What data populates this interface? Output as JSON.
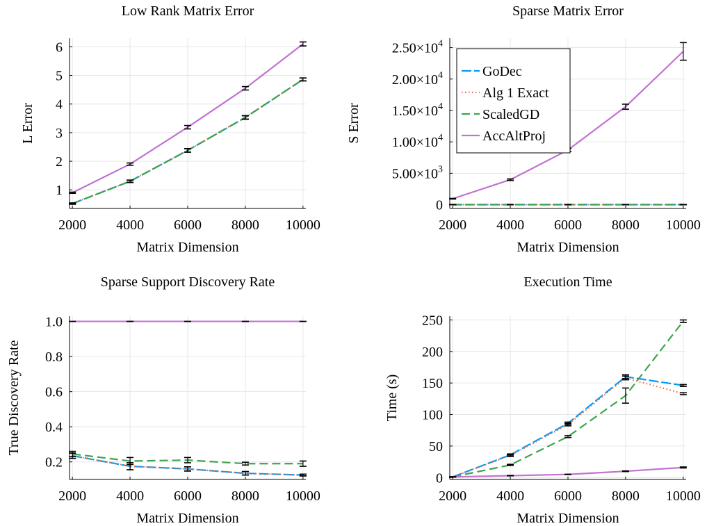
{
  "legend": {
    "entries": [
      {
        "name": "GoDec",
        "color": "#009AFA",
        "dash": "long-dash"
      },
      {
        "name": "Alg 1 Exact",
        "color": "#E26F46",
        "dash": "dot"
      },
      {
        "name": "ScaledGD",
        "color": "#3DA44D",
        "dash": "dash"
      },
      {
        "name": "AccAltProj",
        "color": "#C271D2",
        "dash": "solid"
      }
    ]
  },
  "chart_data": [
    {
      "type": "line",
      "title": "Low Rank Matrix Error",
      "xlabel": "Matrix Dimension",
      "ylabel": "L Error",
      "x": [
        2000,
        4000,
        6000,
        8000,
        10000
      ],
      "xticks": [
        "2000",
        "4000",
        "6000",
        "8000",
        "10000"
      ],
      "yticks": [
        {
          "v": 1,
          "label": "1"
        },
        {
          "v": 2,
          "label": "2"
        },
        {
          "v": 3,
          "label": "3"
        },
        {
          "v": 4,
          "label": "4"
        },
        {
          "v": 5,
          "label": "5"
        },
        {
          "v": 6,
          "label": "6"
        }
      ],
      "xlim": [
        1900,
        10100
      ],
      "ylim": [
        0.35,
        6.3
      ],
      "grid": true,
      "series": [
        {
          "name": "GoDec",
          "values": [
            0.52,
            1.3,
            2.38,
            3.53,
            4.86
          ],
          "err": [
            0.02,
            0.04,
            0.06,
            0.06,
            0.05
          ]
        },
        {
          "name": "Alg 1 Exact",
          "values": [
            0.52,
            1.3,
            2.38,
            3.53,
            4.86
          ],
          "err": [
            0.02,
            0.04,
            0.06,
            0.06,
            0.05
          ]
        },
        {
          "name": "ScaledGD",
          "values": [
            0.52,
            1.3,
            2.38,
            3.53,
            4.86
          ],
          "err": [
            0.02,
            0.04,
            0.06,
            0.06,
            0.05
          ]
        },
        {
          "name": "AccAltProj",
          "values": [
            0.9,
            1.9,
            3.19,
            4.55,
            6.1
          ],
          "err": [
            0.02,
            0.04,
            0.06,
            0.06,
            0.07
          ]
        }
      ]
    },
    {
      "type": "line",
      "title": "Sparse Matrix Error",
      "xlabel": "Matrix Dimension",
      "ylabel": "S Error",
      "x": [
        2000,
        4000,
        6000,
        8000,
        10000
      ],
      "xticks": [
        "2000",
        "4000",
        "6000",
        "8000",
        "10000"
      ],
      "yticks": [
        {
          "v": 0,
          "label": "0"
        },
        {
          "v": 5000,
          "label": "5.00×10",
          "exp": "3"
        },
        {
          "v": 10000,
          "label": "1.00×10",
          "exp": "4"
        },
        {
          "v": 15000,
          "label": "1.50×10",
          "exp": "4"
        },
        {
          "v": 20000,
          "label": "2.00×10",
          "exp": "4"
        },
        {
          "v": 25000,
          "label": "2.50×10",
          "exp": "4"
        }
      ],
      "xlim": [
        1900,
        10100
      ],
      "ylim": [
        -600,
        26500
      ],
      "grid": true,
      "legend_position": "top-left",
      "series": [
        {
          "name": "GoDec",
          "values": [
            5,
            5,
            5,
            5,
            5
          ],
          "err": [
            0,
            0,
            0,
            0,
            0
          ]
        },
        {
          "name": "Alg 1 Exact",
          "values": [
            5,
            5,
            5,
            5,
            5
          ],
          "err": [
            0,
            0,
            0,
            0,
            0
          ]
        },
        {
          "name": "ScaledGD",
          "values": [
            5,
            5,
            5,
            5,
            5
          ],
          "err": [
            0,
            0,
            0,
            0,
            0
          ]
        },
        {
          "name": "AccAltProj",
          "values": [
            950,
            3980,
            8700,
            15600,
            24400
          ],
          "err": [
            50,
            120,
            250,
            400,
            1400
          ]
        }
      ]
    },
    {
      "type": "line",
      "title": "Sparse Support Discovery Rate",
      "xlabel": "Matrix Dimension",
      "ylabel": "True Discovery Rate",
      "x": [
        2000,
        4000,
        6000,
        8000,
        10000
      ],
      "xticks": [
        "2000",
        "4000",
        "6000",
        "8000",
        "10000"
      ],
      "yticks": [
        {
          "v": 0.2,
          "label": "0.2"
        },
        {
          "v": 0.4,
          "label": "0.4"
        },
        {
          "v": 0.6,
          "label": "0.6"
        },
        {
          "v": 0.8,
          "label": "0.8"
        },
        {
          "v": 1.0,
          "label": "1.0"
        }
      ],
      "xlim": [
        1900,
        10100
      ],
      "ylim": [
        0.1,
        1.03
      ],
      "grid": true,
      "series": [
        {
          "name": "GoDec",
          "values": [
            0.235,
            0.175,
            0.16,
            0.135,
            0.125
          ],
          "err": [
            0.015,
            0.02,
            0.012,
            0.01,
            0.005
          ]
        },
        {
          "name": "Alg 1 Exact",
          "values": [
            0.235,
            0.175,
            0.16,
            0.135,
            0.125
          ],
          "err": [
            0.015,
            0.02,
            0.012,
            0.01,
            0.005
          ]
        },
        {
          "name": "ScaledGD",
          "values": [
            0.245,
            0.205,
            0.21,
            0.19,
            0.19
          ],
          "err": [
            0.015,
            0.02,
            0.015,
            0.008,
            0.015
          ]
        },
        {
          "name": "AccAltProj",
          "values": [
            1.0,
            1.0,
            1.0,
            1.0,
            1.0
          ],
          "err": [
            0,
            0,
            0,
            0,
            0
          ]
        }
      ]
    },
    {
      "type": "line",
      "title": "Execution Time",
      "xlabel": "Matrix Dimension",
      "ylabel": "Time (s)",
      "x": [
        2000,
        4000,
        6000,
        8000,
        10000
      ],
      "xticks": [
        "2000",
        "4000",
        "6000",
        "8000",
        "10000"
      ],
      "yticks": [
        {
          "v": 0,
          "label": "0"
        },
        {
          "v": 50,
          "label": "50"
        },
        {
          "v": 100,
          "label": "100"
        },
        {
          "v": 150,
          "label": "150"
        },
        {
          "v": 200,
          "label": "200"
        },
        {
          "v": 250,
          "label": "250"
        }
      ],
      "xlim": [
        1900,
        10100
      ],
      "ylim": [
        -3,
        256
      ],
      "grid": true,
      "series": [
        {
          "name": "GoDec",
          "values": [
            1,
            36,
            86,
            160,
            146
          ],
          "err": [
            0.3,
            1.5,
            2,
            3,
            1.5
          ]
        },
        {
          "name": "Alg 1 Exact",
          "values": [
            1,
            35,
            84,
            158,
            133
          ],
          "err": [
            0.3,
            1.5,
            2,
            3,
            1.5
          ]
        },
        {
          "name": "ScaledGD",
          "values": [
            1,
            20,
            65,
            130,
            248
          ],
          "err": [
            0.3,
            1,
            1.5,
            12,
            2
          ]
        },
        {
          "name": "AccAltProj",
          "values": [
            1,
            3,
            5,
            10,
            16
          ],
          "err": [
            0.2,
            0.3,
            0.3,
            0.5,
            0.8
          ]
        }
      ]
    }
  ]
}
